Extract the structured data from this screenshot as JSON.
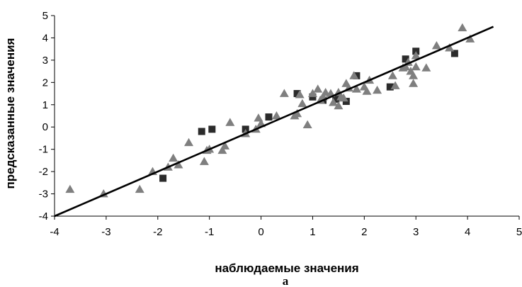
{
  "chart_data": {
    "type": "scatter",
    "xlabel": "наблюдаемые значения",
    "ylabel": "предсказанные значения",
    "caption": "a",
    "xlim": [
      -4,
      5
    ],
    "ylim": [
      -4,
      5
    ],
    "xticks": [
      -4,
      -3,
      -2,
      -1,
      0,
      1,
      2,
      3,
      4,
      5
    ],
    "yticks": [
      -4,
      -3,
      -2,
      -1,
      0,
      1,
      2,
      3,
      4,
      5
    ],
    "grid": false,
    "legend": "none",
    "series": [
      {
        "marker": "square",
        "color": "#2b2b2b",
        "points": [
          [
            -1.9,
            -2.3
          ],
          [
            -1.15,
            -0.2
          ],
          [
            -0.95,
            -0.1
          ],
          [
            -0.3,
            -0.1
          ],
          [
            0.15,
            0.45
          ],
          [
            0.7,
            1.5
          ],
          [
            1.0,
            1.35
          ],
          [
            1.2,
            1.2
          ],
          [
            1.45,
            1.25
          ],
          [
            1.65,
            1.15
          ],
          [
            1.85,
            2.3
          ],
          [
            2.5,
            1.8
          ],
          [
            2.8,
            3.05
          ],
          [
            3.0,
            3.4
          ],
          [
            3.75,
            3.3
          ]
        ]
      },
      {
        "marker": "triangle",
        "color": "#7f7f7f",
        "points": [
          [
            -3.7,
            -2.8
          ],
          [
            -3.05,
            -3.0
          ],
          [
            -2.35,
            -2.8
          ],
          [
            -2.1,
            -2.0
          ],
          [
            -1.8,
            -1.8
          ],
          [
            -1.7,
            -1.4
          ],
          [
            -1.6,
            -1.7
          ],
          [
            -1.4,
            -0.7
          ],
          [
            -1.1,
            -1.55
          ],
          [
            -1.05,
            -1.05
          ],
          [
            -1.0,
            -1.0
          ],
          [
            -0.75,
            -1.05
          ],
          [
            -0.7,
            -0.85
          ],
          [
            -0.6,
            0.2
          ],
          [
            -0.3,
            -0.3
          ],
          [
            -0.1,
            -0.1
          ],
          [
            -0.05,
            0.4
          ],
          [
            0.0,
            0.15
          ],
          [
            0.3,
            0.5
          ],
          [
            0.45,
            1.5
          ],
          [
            0.65,
            0.5
          ],
          [
            0.7,
            0.6
          ],
          [
            0.75,
            1.45
          ],
          [
            0.8,
            1.05
          ],
          [
            0.9,
            0.1
          ],
          [
            1.0,
            1.5
          ],
          [
            1.1,
            1.7
          ],
          [
            1.15,
            1.2
          ],
          [
            1.2,
            1.35
          ],
          [
            1.25,
            1.55
          ],
          [
            1.35,
            1.5
          ],
          [
            1.4,
            1.1
          ],
          [
            1.5,
            1.55
          ],
          [
            1.5,
            0.95
          ],
          [
            1.55,
            1.35
          ],
          [
            1.6,
            1.3
          ],
          [
            1.65,
            1.95
          ],
          [
            1.7,
            1.75
          ],
          [
            1.8,
            2.3
          ],
          [
            1.85,
            1.7
          ],
          [
            2.0,
            1.8
          ],
          [
            2.05,
            1.6
          ],
          [
            2.1,
            2.1
          ],
          [
            2.25,
            1.65
          ],
          [
            2.55,
            2.3
          ],
          [
            2.6,
            1.85
          ],
          [
            2.75,
            2.65
          ],
          [
            2.8,
            2.7
          ],
          [
            2.85,
            2.9
          ],
          [
            2.9,
            2.5
          ],
          [
            2.95,
            1.95
          ],
          [
            2.95,
            2.3
          ],
          [
            3.0,
            2.7
          ],
          [
            3.0,
            3.2
          ],
          [
            3.2,
            2.65
          ],
          [
            3.4,
            3.65
          ],
          [
            3.65,
            3.55
          ],
          [
            3.9,
            4.45
          ],
          [
            4.05,
            3.95
          ]
        ]
      }
    ],
    "trendline": {
      "x": [
        -4,
        4.5
      ],
      "y": [
        -4,
        4.5
      ],
      "color": "#000000"
    }
  }
}
